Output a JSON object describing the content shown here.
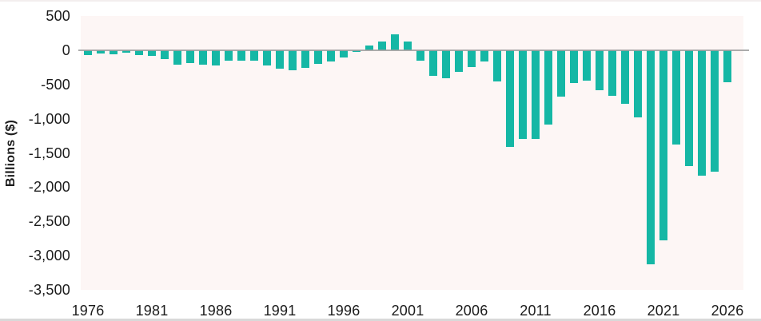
{
  "chart_data": {
    "type": "bar",
    "title": "",
    "ylabel": "Billions ($)",
    "xlabel": "",
    "legend": "none",
    "grid": "zero-line-only",
    "ylim": [
      -3500,
      500
    ],
    "ytick_step": 500,
    "y_tick_labels": [
      "500",
      "0",
      "-500",
      "-1,000",
      "-1,500",
      "-2,000",
      "-2,500",
      "-3,000",
      "-3,500"
    ],
    "y_tick_values": [
      500,
      0,
      -500,
      -1000,
      -1500,
      -2000,
      -2500,
      -3000,
      -3500
    ],
    "x_tick_labels": [
      "1976",
      "1981",
      "1986",
      "1991",
      "1996",
      "2001",
      "2006",
      "2011",
      "2016",
      "2021",
      "2026"
    ],
    "x_tick_values": [
      1976,
      1981,
      1986,
      1991,
      1996,
      2001,
      2006,
      2011,
      2016,
      2021,
      2026
    ],
    "x": [
      1976,
      1977,
      1978,
      1979,
      1980,
      1981,
      1982,
      1983,
      1984,
      1985,
      1986,
      1987,
      1988,
      1989,
      1990,
      1991,
      1992,
      1993,
      1994,
      1995,
      1996,
      1997,
      1998,
      1999,
      2000,
      2001,
      2002,
      2003,
      2004,
      2005,
      2006,
      2007,
      2008,
      2009,
      2010,
      2011,
      2012,
      2013,
      2014,
      2015,
      2016,
      2017,
      2018,
      2019,
      2020,
      2021,
      2022,
      2023,
      2024,
      2025,
      2026
    ],
    "values": [
      -73.7,
      -53.7,
      -59.2,
      -40.7,
      -73.8,
      -79.0,
      -128.0,
      -207.8,
      -185.4,
      -212.3,
      -221.2,
      -149.7,
      -155.2,
      -152.6,
      -221.0,
      -269.2,
      -290.3,
      -255.1,
      -203.2,
      -164.0,
      -107.4,
      -21.9,
      69.3,
      125.6,
      236.2,
      128.2,
      -157.8,
      -377.6,
      -412.7,
      -318.3,
      -248.2,
      -160.7,
      -458.6,
      -1412.7,
      -1294.4,
      -1299.6,
      -1087.0,
      -679.5,
      -484.6,
      -441.9,
      -584.7,
      -665.4,
      -779.0,
      -984.2,
      -3131.9,
      -2775.3,
      -1375.4,
      -1695.2,
      -1833.8,
      -1775.0,
      -470.0
    ],
    "colors": {
      "bar": "#15b7a5",
      "plot_background": "#fdf6f5",
      "zero_line": "#9d9d9d",
      "text": "#1c1c1c",
      "page_background": "#ffffff"
    }
  }
}
